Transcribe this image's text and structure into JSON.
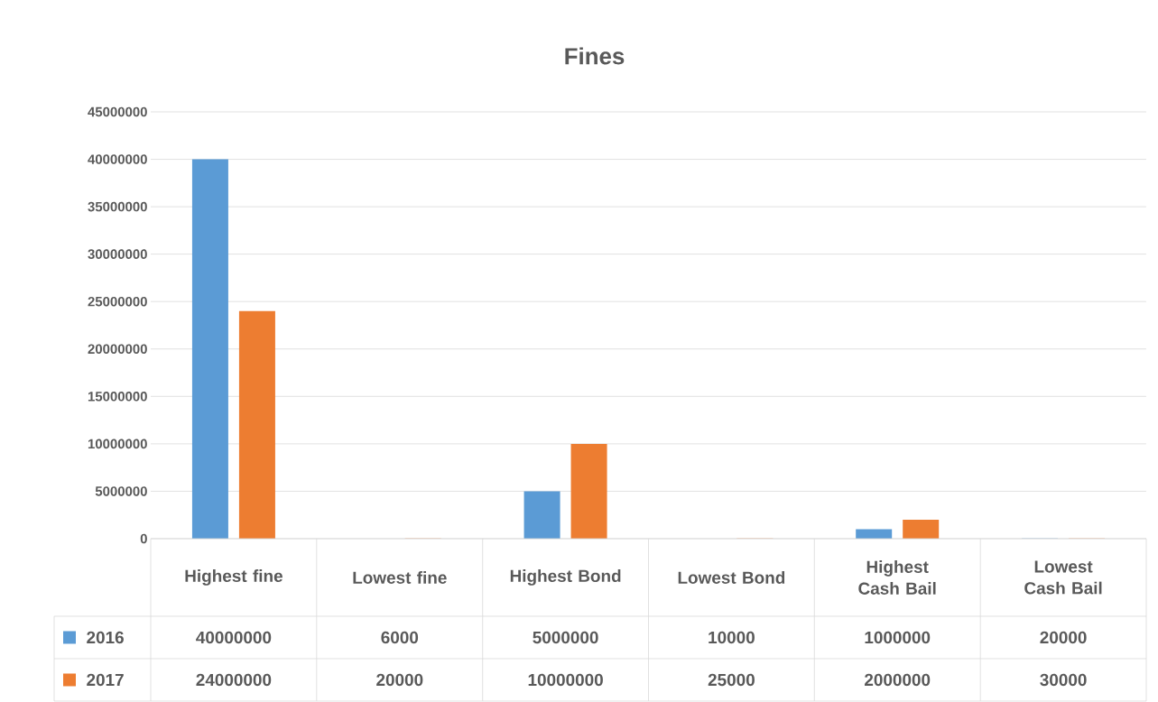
{
  "chart_data": {
    "type": "bar",
    "title": "Fines",
    "categories": [
      "Highest fine",
      "Lowest fine",
      "Highest Bond",
      "Lowest Bond",
      "Highest Cash Bail",
      "Lowest Cash Bail"
    ],
    "series": [
      {
        "name": "2016",
        "color": "#5b9bd5",
        "values": [
          40000000,
          6000,
          5000000,
          10000,
          1000000,
          20000
        ]
      },
      {
        "name": "2017",
        "color": "#ed7d31",
        "values": [
          24000000,
          20000,
          10000000,
          25000,
          2000000,
          30000
        ]
      }
    ],
    "ylim": [
      0,
      45000000
    ],
    "yticks": [
      0,
      5000000,
      10000000,
      15000000,
      20000000,
      25000000,
      30000000,
      35000000,
      40000000,
      45000000
    ],
    "grid": "y",
    "legend": "bottom",
    "data_labels": true
  }
}
